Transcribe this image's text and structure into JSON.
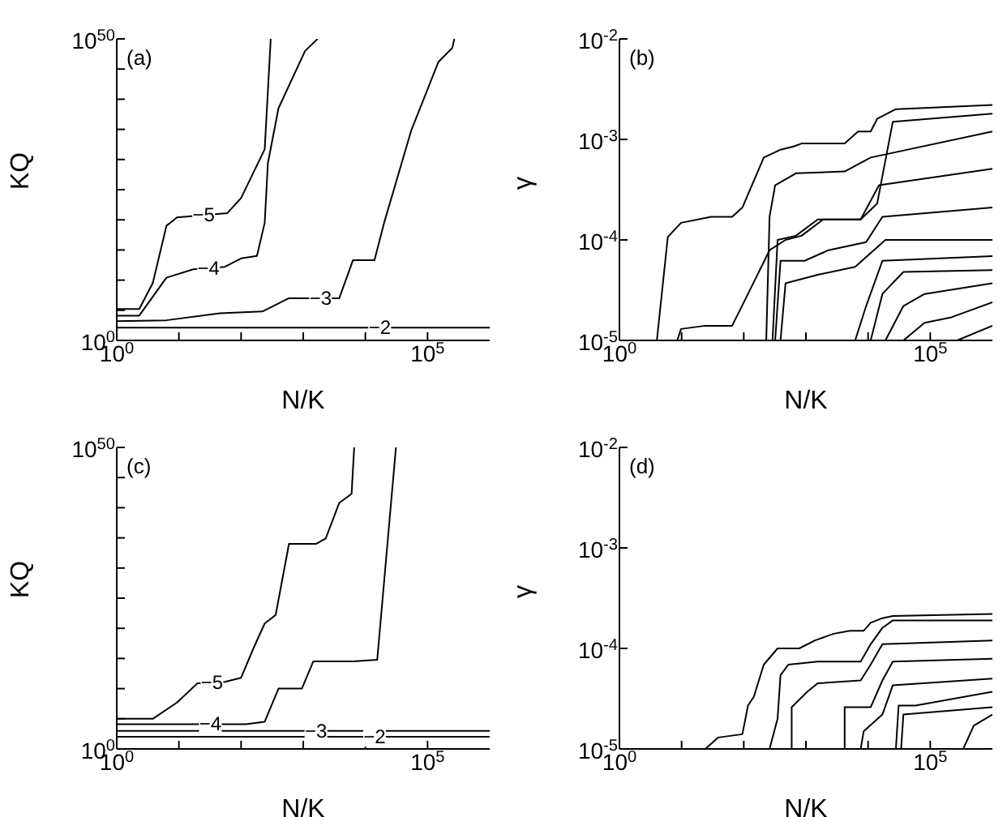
{
  "chart_data": [
    {
      "type": "line",
      "xlabel": "N/K",
      "ylabel": "KQ",
      "log": "xy",
      "xlim": [
        1,
        1000000
      ],
      "ylim": [
        1,
        1e+50
      ],
      "xticks": [
        {
          "value": 1,
          "label": "10$^{0}$"
        },
        {
          "value": 10,
          "label": null
        },
        {
          "value": 100,
          "label": null
        },
        {
          "value": 1000,
          "label": null
        },
        {
          "value": 10000,
          "label": null
        },
        {
          "value": 100000,
          "label": "10$^{5}$"
        }
      ],
      "yticks": [
        {
          "value": 1,
          "label": "10$^{0}$"
        },
        {
          "value": 100000.0,
          "label": null
        },
        {
          "value": 10000000000.0,
          "label": null
        },
        {
          "value": 1000000000000000.0,
          "label": null
        },
        {
          "value": 1e+20,
          "label": null
        },
        {
          "value": 1e+25,
          "label": null
        },
        {
          "value": 1e+30,
          "label": null
        },
        {
          "value": 1e+35,
          "label": null
        },
        {
          "value": 1e+40,
          "label": null
        },
        {
          "value": 1e+45,
          "label": null
        },
        {
          "value": 1e+50,
          "label": "10$^{50}$"
        }
      ],
      "annotations": [
        "(a)",
        {
          "text": "−5",
          "x": 25,
          "y": 6e+20
        },
        {
          "text": "−4",
          "x": 30,
          "y": 1000000000000.0
        },
        {
          "text": "−3",
          "x": 1900,
          "y": 10000000.0
        },
        {
          "text": "−2",
          "x": 17000,
          "y": 130
        }
      ],
      "series": [
        {
          "color": "#000000",
          "x": [
            1,
            1000000
          ],
          "values": [
            130,
            130
          ]
        },
        {
          "color": "#000000",
          "x": [
            1,
            6.3,
            46,
            220,
            590,
            3800,
            6300,
            14000,
            20000,
            55000,
            150000,
            250000,
            270000
          ],
          "values": [
            1600,
            2200,
            32000,
            63000,
            10000000.0,
            10000000.0,
            20000000000000.0,
            20000000000000.0,
            3.2e+19,
            8e+34,
            1.6e+46,
            3.2e+48,
            1e+50
          ]
        },
        {
          "color": "#000000",
          "x": [
            1,
            2.3,
            6.3,
            17,
            55,
            100,
            180,
            240,
            270,
            400,
            1070,
            1700
          ],
          "values": [
            13000,
            13000,
            25000000000.0,
            630000000000.0,
            1600000000000.0,
            40000000000000.0,
            100000000000000.0,
            3.2e+19,
            2.5e+29,
            3.2e+38,
            1e+48,
            1e+50
          ]
        },
        {
          "color": "#000000",
          "x": [
            1,
            2.3,
            3.8,
            6.3,
            9.3,
            60,
            100,
            240,
            300
          ],
          "values": [
            160000,
            160000,
            3200000000.0,
            1e+19,
            2.5e+20,
            1.3e+21,
            4e+23,
            5e+31,
            1e+50
          ]
        }
      ]
    },
    {
      "type": "line",
      "xlabel": "N/K",
      "ylabel": "γ",
      "log": "xy",
      "xlim": [
        1,
        1000000
      ],
      "ylim": [
        1e-05,
        0.01
      ],
      "xticks": [
        {
          "value": 1,
          "label": "10$^{0}$"
        },
        {
          "value": 10,
          "label": null
        },
        {
          "value": 100,
          "label": null
        },
        {
          "value": 1000,
          "label": null
        },
        {
          "value": 10000,
          "label": null
        },
        {
          "value": 100000,
          "label": "10$^{5}$"
        }
      ],
      "yticks": [
        {
          "value": 1e-05,
          "label": "10$^{-5}$"
        },
        {
          "value": 0.0001,
          "label": "10$^{-4}$"
        },
        {
          "value": 0.001,
          "label": "10$^{-3}$"
        },
        {
          "value": 0.01,
          "label": "10$^{-2}$"
        }
      ],
      "annotations": [
        "(b)"
      ],
      "series": [
        {
          "color": "#000000",
          "x": [
            4,
            6,
            9.8,
            30,
            65,
            95,
            210,
            390,
            630,
            850,
            4200,
            6900,
            11000,
            14000,
            28000,
            1000000
          ],
          "values": [
            1e-05,
            0.000107,
            0.000148,
            0.00017,
            0.00017,
            0.00021,
            0.00066,
            0.00079,
            0.00085,
            0.00091,
            0.00091,
            0.0012,
            0.0012,
            0.0016,
            0.002,
            0.0022
          ]
        },
        {
          "color": "#000000",
          "x": [
            8.5,
            9.8,
            24,
            65,
            117,
            260,
            470,
            850,
            1900,
            7600,
            14000,
            25000,
            1000000
          ],
          "values": [
            1e-05,
            1.3e-05,
            1.4e-05,
            1.4e-05,
            2.9e-05,
            7.9e-05,
            0.0001,
            0.00011,
            0.00016,
            0.00016,
            0.00023,
            0.0015,
            0.0018
          ]
        },
        {
          "color": "#000000",
          "x": [
            230,
            260,
            320,
            690,
            4200,
            11000,
            1000000
          ],
          "values": [
            1e-05,
            0.00017,
            0.00035,
            0.00046,
            0.00048,
            0.00066,
            0.0012
          ]
        },
        {
          "color": "#000000",
          "x": [
            290,
            350,
            690,
            1550,
            7600,
            15000,
            1000000
          ],
          "values": [
            1e-05,
            0.0001,
            0.00011,
            0.00016,
            0.00016,
            0.00035,
            0.00051
          ]
        },
        {
          "color": "#000000",
          "x": [
            320,
            390,
            950,
            2300,
            9300,
            17000,
            1000000
          ],
          "values": [
            1e-05,
            6.2e-05,
            6.2e-05,
            7.9e-05,
            9.5e-05,
            0.00017,
            0.00021
          ]
        },
        {
          "color": "#000000",
          "x": [
            390,
            470,
            1550,
            6200,
            19000,
            1000000
          ],
          "values": [
            1e-05,
            3.7e-05,
            4.5e-05,
            5.4e-05,
            0.0001,
            0.0001
          ]
        },
        {
          "color": "#000000",
          "x": [
            6200,
            9300,
            17000,
            1000000
          ],
          "values": [
            1e-05,
            2.2e-05,
            6.2e-05,
            6.9e-05
          ]
        },
        {
          "color": "#000000",
          "x": [
            11000,
            17000,
            37000,
            1000000
          ],
          "values": [
            1e-05,
            2.9e-05,
            4.8e-05,
            5e-05
          ]
        },
        {
          "color": "#000000",
          "x": [
            19000,
            37000,
            81000,
            1000000
          ],
          "values": [
            1e-05,
            2.2e-05,
            2.9e-05,
            3.7e-05
          ]
        },
        {
          "color": "#000000",
          "x": [
            37000,
            81000,
            220000,
            1000000
          ],
          "values": [
            1e-05,
            1.5e-05,
            1.7e-05,
            2.4e-05
          ]
        },
        {
          "color": "#000000",
          "x": [
            270000,
            1000000
          ],
          "values": [
            1e-05,
            1.4e-05
          ]
        }
      ]
    },
    {
      "type": "line",
      "xlabel": "N/K",
      "ylabel": "KQ",
      "log": "xy",
      "xlim": [
        1,
        1000000
      ],
      "ylim": [
        1,
        1e+50
      ],
      "xticks": [
        {
          "value": 1,
          "label": "10$^{0}$"
        },
        {
          "value": 10,
          "label": null
        },
        {
          "value": 100,
          "label": null
        },
        {
          "value": 1000,
          "label": null
        },
        {
          "value": 10000,
          "label": null
        },
        {
          "value": 100000,
          "label": "10$^{5}$"
        }
      ],
      "yticks": [
        {
          "value": 1,
          "label": "10$^{0}$"
        },
        {
          "value": 100000.0,
          "label": null
        },
        {
          "value": 10000000000.0,
          "label": null
        },
        {
          "value": 1000000000000000.0,
          "label": null
        },
        {
          "value": 1e+20,
          "label": null
        },
        {
          "value": 1e+25,
          "label": null
        },
        {
          "value": 1e+30,
          "label": null
        },
        {
          "value": 1e+35,
          "label": null
        },
        {
          "value": 1e+40,
          "label": null
        },
        {
          "value": 1e+45,
          "label": null
        },
        {
          "value": 1e+50,
          "label": "10$^{50}$"
        }
      ],
      "annotations": [
        "(c)",
        {
          "text": "−5",
          "x": 34,
          "y": 100000000000.0
        },
        {
          "text": "−4",
          "x": 32,
          "y": 13000
        },
        {
          "text": "−3",
          "x": 1600,
          "y": 1000
        },
        {
          "text": "−2",
          "x": 14000,
          "y": 100
        }
      ],
      "series": [
        {
          "color": "#000000",
          "x": [
            1,
            1000000
          ],
          "values": [
            100,
            100
          ]
        },
        {
          "color": "#000000",
          "x": [
            1,
            1000000
          ],
          "values": [
            1000,
            1000
          ]
        },
        {
          "color": "#000000",
          "x": [
            1,
            120,
            240,
            400,
            950,
            1450,
            6300,
            15500,
            31000
          ],
          "values": [
            13000,
            13000,
            32000,
            10000000000.0,
            10000000000.0,
            320000000000000.0,
            320000000000000.0,
            630000000000000.0,
            1e+50
          ]
        },
        {
          "color": "#000000",
          "x": [
            1,
            3.8,
            9.3,
            20,
            55,
            100,
            160,
            240,
            360,
            590,
            1600,
            2300,
            3800,
            6000,
            6600
          ],
          "values": [
            100000,
            100000,
            50000000.0,
            80000000000.0,
            130000000000.0,
            630000000000.0,
            6.3e+16,
            6.3e+20,
            1.6e+22,
            1e+34,
            1e+34,
            8e+34,
            6.3e+40,
            2e+42,
            1e+50
          ]
        }
      ]
    },
    {
      "type": "line",
      "xlabel": "N/K",
      "ylabel": "γ",
      "log": "xy",
      "xlim": [
        1,
        1000000
      ],
      "ylim": [
        1e-05,
        0.01
      ],
      "xticks": [
        {
          "value": 1,
          "label": "10$^{0}$"
        },
        {
          "value": 10,
          "label": null
        },
        {
          "value": 100,
          "label": null
        },
        {
          "value": 1000,
          "label": null
        },
        {
          "value": 10000,
          "label": null
        },
        {
          "value": 100000,
          "label": "10$^{5}$"
        }
      ],
      "yticks": [
        {
          "value": 1e-05,
          "label": "10$^{-5}$"
        },
        {
          "value": 0.0001,
          "label": "10$^{-4}$"
        },
        {
          "value": 0.001,
          "label": "10$^{-3}$"
        },
        {
          "value": 0.01,
          "label": "10$^{-2}$"
        }
      ],
      "annotations": [
        "(d)"
      ],
      "series": [
        {
          "color": "#000000",
          "x": [
            24,
            39,
            95,
            117,
            145,
            210,
            350,
            780,
            1400,
            2800,
            5100,
            8500,
            11000,
            17000,
            25000,
            1000000
          ],
          "values": [
            1e-05,
            1.3e-05,
            1.4e-05,
            2.7e-05,
            3.3e-05,
            6.9e-05,
            0.0001,
            0.0001,
            0.00012,
            0.00014,
            0.00015,
            0.00015,
            0.00018,
            0.0002,
            0.00021,
            0.00022
          ]
        },
        {
          "color": "#000000",
          "x": [
            260,
            350,
            390,
            520,
            1550,
            7600,
            11000,
            17000,
            25000,
            1000000
          ],
          "values": [
            1e-05,
            2e-05,
            5.4e-05,
            6.9e-05,
            7.4e-05,
            7.4e-05,
            0.00011,
            0.00016,
            0.00019,
            0.00019
          ]
        },
        {
          "color": "#000000",
          "x": [
            590,
            590,
            1050,
            1550,
            7600,
            11000,
            17000,
            1000000
          ],
          "values": [
            1e-05,
            2.6e-05,
            3.7e-05,
            4.5e-05,
            4.8e-05,
            6.9e-05,
            0.00011,
            0.00012
          ]
        },
        {
          "color": "#000000",
          "x": [
            4200,
            4200,
            11000,
            17000,
            25000,
            1000000
          ],
          "values": [
            1e-05,
            2.6e-05,
            2.6e-05,
            4.8e-05,
            7.4e-05,
            7.9e-05
          ]
        },
        {
          "color": "#000000",
          "x": [
            7600,
            8500,
            17000,
            25000,
            1000000
          ],
          "values": [
            1e-05,
            1.5e-05,
            2.2e-05,
            4.3e-05,
            5e-05
          ]
        },
        {
          "color": "#000000",
          "x": [
            28000,
            31000,
            58000,
            1000000
          ],
          "values": [
            1e-05,
            2.7e-05,
            2.7e-05,
            3.7e-05
          ]
        },
        {
          "color": "#000000",
          "x": [
            34000,
            37000,
            1000000
          ],
          "values": [
            1e-05,
            2.2e-05,
            2.6e-05
          ]
        },
        {
          "color": "#000000",
          "x": [
            340000,
            500000,
            1000000
          ],
          "values": [
            1e-05,
            1.7e-05,
            2.2e-05
          ]
        }
      ]
    }
  ]
}
